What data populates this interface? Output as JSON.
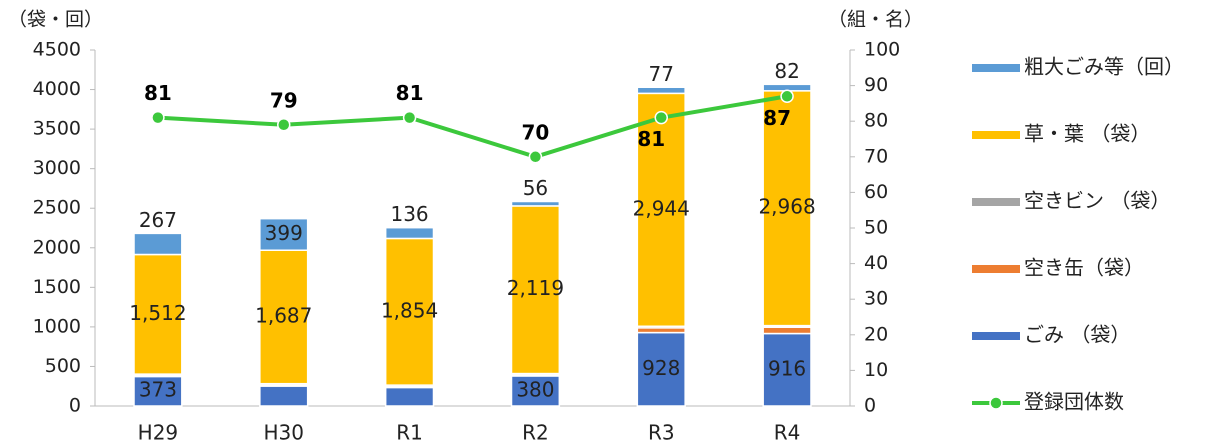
{
  "chart_data": {
    "type": "bar",
    "y_unit": "（袋・回）",
    "y2_unit": "（組・名）",
    "categories": [
      "H29",
      "H30",
      "R1",
      "R2",
      "R3",
      "R4"
    ],
    "ylim": [
      0,
      4500
    ],
    "yticks": [
      0,
      500,
      1000,
      1500,
      2000,
      2500,
      3000,
      3500,
      4000,
      4500
    ],
    "y2lim": [
      0,
      100
    ],
    "y2ticks": [
      0,
      10,
      20,
      30,
      40,
      50,
      60,
      70,
      80,
      90,
      100
    ],
    "series": [
      {
        "name": "ごみ （袋）",
        "color": "#4472c4",
        "values": [
          373,
          252,
          234,
          380,
          928,
          916
        ]
      },
      {
        "name": "空き缶（袋）",
        "color": "#ed7d31",
        "values": [
          10,
          10,
          10,
          10,
          60,
          80
        ]
      },
      {
        "name": "空きビン （袋）",
        "color": "#a5a5a5",
        "values": [
          20,
          20,
          20,
          20,
          20,
          20
        ]
      },
      {
        "name": "草・葉 （袋）",
        "color": "#ffc000",
        "values": [
          1512,
          1687,
          1854,
          2119,
          2944,
          2968
        ],
        "value_labels": [
          "1,512",
          "1,687",
          "1,854",
          "2,119",
          "2,944",
          "2,968"
        ]
      },
      {
        "name": "粗大ごみ等（回）",
        "color": "#5b9bd5",
        "values": [
          267,
          399,
          136,
          56,
          77,
          82
        ]
      },
      {
        "name": "登録団体数",
        "type": "line",
        "axis": "y2",
        "color": "#3cc83c",
        "values": [
          81,
          79,
          81,
          70,
          81,
          87
        ]
      }
    ]
  }
}
